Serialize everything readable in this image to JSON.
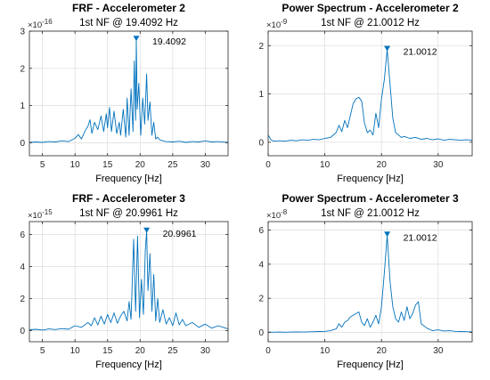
{
  "colors": {
    "line": "#0072BD",
    "axis": "#262626",
    "grid": "#dcdcdc"
  },
  "chart_data": [
    {
      "type": "line",
      "title": "FRF - Accelerometer 2",
      "subtitle": "1st NF @ 19.4092 Hz",
      "xlabel": "Frequency [Hz]",
      "xlim": [
        3,
        33.5
      ],
      "xticks": [
        5,
        10,
        15,
        20,
        25,
        30
      ],
      "ylim": [
        -0.35,
        3.0
      ],
      "yticks": [
        0,
        1,
        2,
        3
      ],
      "y_exponent": "-16",
      "grid": true,
      "peak": {
        "x": 19.4092,
        "y": 2.78,
        "label": "19.4092"
      },
      "series": [
        {
          "x": [
            3,
            4,
            5,
            6,
            7,
            8,
            9,
            10,
            10.5,
            11,
            11.5,
            12,
            12.3,
            12.6,
            13,
            13.5,
            14,
            14.4,
            14.8,
            15,
            15.3,
            15.6,
            16,
            16.4,
            16.8,
            17,
            17.4,
            17.8,
            18,
            18.3,
            18.6,
            18.9,
            19.1,
            19.3,
            19.4092,
            19.55,
            19.8,
            20.1,
            20.4,
            20.7,
            21,
            21.2,
            21.5,
            21.8,
            22.1,
            22.4,
            22.7,
            23,
            23.5,
            24,
            25,
            26,
            27,
            28,
            29,
            30,
            31,
            32,
            33.5
          ],
          "y": [
            0.01,
            0.02,
            0.01,
            0.03,
            0.02,
            0.05,
            0.03,
            0.12,
            0.22,
            0.1,
            0.3,
            0.45,
            0.62,
            0.25,
            0.55,
            0.35,
            0.72,
            0.3,
            0.78,
            0.4,
            0.95,
            0.3,
            0.85,
            0.25,
            0.55,
            0.2,
            0.9,
            0.15,
            1.2,
            0.2,
            1.45,
            0.3,
            2.2,
            0.6,
            2.78,
            0.9,
            1.6,
            0.2,
            1.2,
            0.5,
            1.85,
            0.6,
            1.1,
            0.2,
            0.55,
            0.1,
            0.15,
            0.08,
            0.05,
            0.03,
            0.02,
            0.04,
            0.01,
            0.03,
            0.02,
            0.05,
            0.02,
            0.03,
            0.01
          ]
        }
      ]
    },
    {
      "type": "line",
      "title": "Power Spectrum - Accelerometer 2",
      "subtitle": "1st NF @ 21.0012 Hz",
      "xlabel": "Frequency [Hz]",
      "xlim": [
        0,
        36
      ],
      "xticks": [
        0,
        10,
        20,
        30
      ],
      "ylim": [
        -0.28,
        2.3
      ],
      "yticks": [
        0,
        1,
        2
      ],
      "y_exponent": "-9",
      "grid": true,
      "peak": {
        "x": 21.0012,
        "y": 1.92,
        "label": "21.0012"
      },
      "series": [
        {
          "x": [
            0,
            0.5,
            1,
            2,
            3,
            4,
            5,
            6,
            7,
            8,
            9,
            10,
            11,
            12,
            12.5,
            13,
            13.5,
            14,
            14.5,
            15,
            15.5,
            16,
            16.5,
            17,
            17.5,
            18,
            18.5,
            19,
            19.5,
            20,
            20.5,
            21,
            21.5,
            22,
            22.5,
            23,
            23.5,
            24,
            25,
            26,
            27,
            28,
            29,
            30,
            31,
            32,
            33,
            34,
            35,
            36
          ],
          "y": [
            0.15,
            0.05,
            0.02,
            0.03,
            0.02,
            0.04,
            0.03,
            0.05,
            0.04,
            0.06,
            0.05,
            0.08,
            0.1,
            0.2,
            0.35,
            0.22,
            0.45,
            0.3,
            0.55,
            0.8,
            0.9,
            0.93,
            0.85,
            0.4,
            0.2,
            0.25,
            0.15,
            0.6,
            0.3,
            0.9,
            1.3,
            1.92,
            1.2,
            0.5,
            0.2,
            0.15,
            0.1,
            0.12,
            0.08,
            0.1,
            0.06,
            0.08,
            0.05,
            0.07,
            0.04,
            0.06,
            0.05,
            0.04,
            0.05,
            0.04
          ]
        }
      ]
    },
    {
      "type": "line",
      "title": "FRF - Accelerometer 3",
      "subtitle": "1st NF @ 20.9961 Hz",
      "xlabel": "Frequency [Hz]",
      "xlim": [
        3,
        33.5
      ],
      "xticks": [
        5,
        10,
        15,
        20,
        25,
        30
      ],
      "ylim": [
        -0.7,
        6.8
      ],
      "yticks": [
        0,
        2,
        4,
        6
      ],
      "y_exponent": "-15",
      "grid": true,
      "peak": {
        "x": 20.9961,
        "y": 6.2,
        "label": "20.9961"
      },
      "series": [
        {
          "x": [
            3,
            4,
            5,
            6,
            7,
            8,
            9,
            10,
            11,
            12,
            12.5,
            13,
            13.5,
            14,
            14.5,
            15,
            15.5,
            16,
            16.5,
            17,
            17.5,
            18,
            18.3,
            18.6,
            19,
            19.3,
            19.6,
            19.9,
            20.2,
            20.5,
            20.8,
            20.9961,
            21.2,
            21.5,
            21.8,
            22.1,
            22.4,
            22.7,
            23,
            23.5,
            24,
            24.5,
            25,
            25.5,
            26,
            26.5,
            27,
            28,
            29,
            30,
            31,
            32,
            33.5
          ],
          "y": [
            0.05,
            0.08,
            0.03,
            0.1,
            0.06,
            0.12,
            0.08,
            0.3,
            0.2,
            0.5,
            0.3,
            0.8,
            0.35,
            0.9,
            0.4,
            1.0,
            0.5,
            1.1,
            0.45,
            0.9,
            1.2,
            0.6,
            1.8,
            0.7,
            5.7,
            1.2,
            5.9,
            0.8,
            3.2,
            1.0,
            5.0,
            6.2,
            2.5,
            4.8,
            1.2,
            3.5,
            0.6,
            2.0,
            0.5,
            1.3,
            0.4,
            0.8,
            0.3,
            1.1,
            0.35,
            0.7,
            0.3,
            0.5,
            0.2,
            0.4,
            0.15,
            0.3,
            0.1
          ]
        }
      ]
    },
    {
      "type": "line",
      "title": "Power Spectrum - Accelerometer 3",
      "subtitle": "1st NF @ 21.0012 Hz",
      "xlabel": "Frequency [Hz]",
      "xlim": [
        0,
        36
      ],
      "xticks": [
        0,
        10,
        20,
        30
      ],
      "ylim": [
        -0.55,
        6.5
      ],
      "yticks": [
        0,
        2,
        4,
        6
      ],
      "y_exponent": "-8",
      "grid": true,
      "peak": {
        "x": 21.0012,
        "y": 5.7,
        "label": "21.0012"
      },
      "series": [
        {
          "x": [
            0,
            1,
            2,
            3,
            4,
            5,
            6,
            7,
            8,
            9,
            10,
            11,
            12,
            12.5,
            13,
            13.5,
            14,
            14.5,
            15,
            15.5,
            16,
            16.5,
            17,
            17.5,
            18,
            18.5,
            19,
            19.5,
            20,
            20.5,
            21,
            21.5,
            22,
            22.5,
            23,
            23.5,
            24,
            24.5,
            25,
            25.5,
            26,
            26.5,
            27,
            28,
            29,
            30,
            31,
            32,
            33,
            34,
            35,
            36
          ],
          "y": [
            0.02,
            0.01,
            0.02,
            0.01,
            0.02,
            0.03,
            0.02,
            0.03,
            0.04,
            0.05,
            0.06,
            0.1,
            0.2,
            0.5,
            0.3,
            0.6,
            0.7,
            0.9,
            1.0,
            1.1,
            1.2,
            0.6,
            0.4,
            0.8,
            0.3,
            0.6,
            1.0,
            0.5,
            1.5,
            3.5,
            5.7,
            3.0,
            1.5,
            0.8,
            0.6,
            1.2,
            0.7,
            1.5,
            0.8,
            1.1,
            1.6,
            1.8,
            0.5,
            0.25,
            0.1,
            0.15,
            0.08,
            0.1,
            0.06,
            0.05,
            0.04,
            0.03
          ]
        }
      ]
    }
  ]
}
